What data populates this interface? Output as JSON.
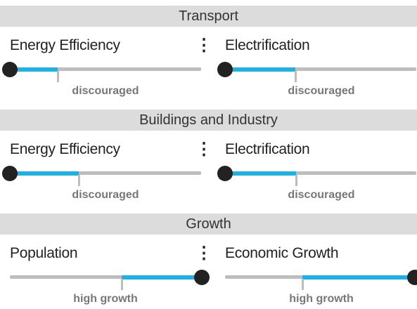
{
  "sections": [
    {
      "title": "Transport",
      "sliders": [
        {
          "label": "Energy Efficiency",
          "status": "discouraged"
        },
        {
          "label": "Electrification",
          "status": "discouraged"
        }
      ]
    },
    {
      "title": "Buildings and Industry",
      "sliders": [
        {
          "label": "Energy Efficiency",
          "status": "discouraged"
        },
        {
          "label": "Electrification",
          "status": "discouraged"
        }
      ]
    },
    {
      "title": "Growth",
      "sliders": [
        {
          "label": "Population",
          "status": "high growth"
        },
        {
          "label": "Economic Growth",
          "status": "high growth"
        }
      ]
    }
  ]
}
